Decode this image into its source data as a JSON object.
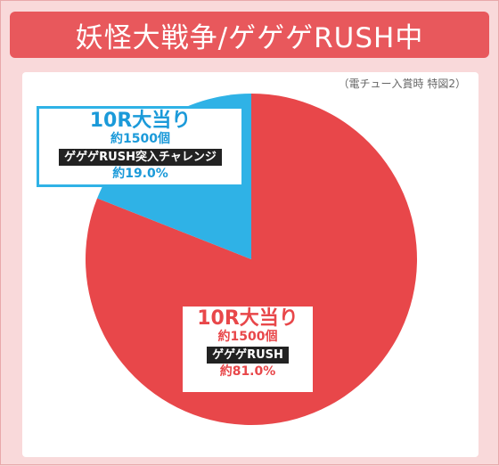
{
  "header": {
    "title": "妖怪大戦争/ゲゲゲRUSH中",
    "note": "（電チュー入賞時 特図2）"
  },
  "colors": {
    "title_bg": "#e8585c",
    "rush": "#e8474a",
    "rush_challenge": "#2fb2e6"
  },
  "chart_data": {
    "type": "pie",
    "title": "妖怪大戦争/ゲゲゲRUSH中",
    "subtitle": "（電チュー入賞時 特図2）",
    "slices": [
      {
        "title": "10R大当り",
        "count_label": "約1500個",
        "outcome": "ゲゲゲRUSH",
        "percent_label": "約81.0%",
        "value": 81.0,
        "color": "#e8474a"
      },
      {
        "title": "10R大当り",
        "count_label": "約1500個",
        "outcome": "ゲゲゲRUSH突入チャレンジ",
        "percent_label": "約19.0%",
        "value": 19.0,
        "color": "#2fb2e6"
      }
    ]
  }
}
